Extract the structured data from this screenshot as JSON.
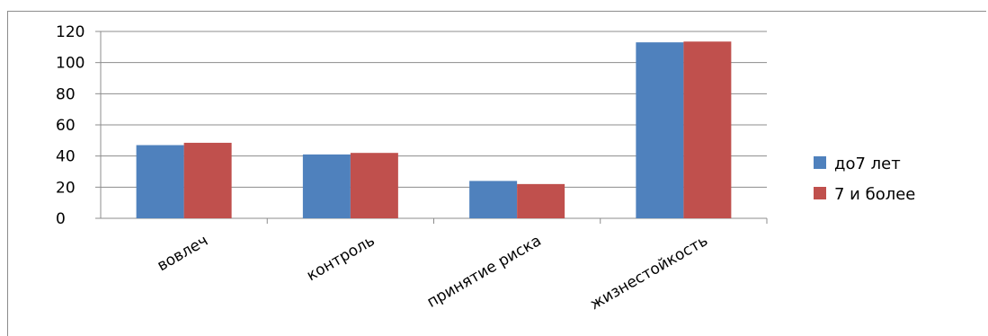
{
  "chart_data": {
    "type": "bar",
    "categories": [
      "вовлеч",
      "контроль",
      "принятие риска",
      "жизнестойкость"
    ],
    "series": [
      {
        "name": "до7 лет",
        "values": [
          47,
          41,
          24,
          113
        ],
        "color": "#4F81BD"
      },
      {
        "name": "7 и более",
        "values": [
          48.5,
          42,
          22,
          113.5
        ],
        "color": "#C0504D"
      }
    ],
    "ylim": [
      0,
      120
    ],
    "yticks": [
      "0",
      "20",
      "40",
      "60",
      "80",
      "100",
      "120"
    ],
    "grid": true,
    "legend_position": "right"
  }
}
